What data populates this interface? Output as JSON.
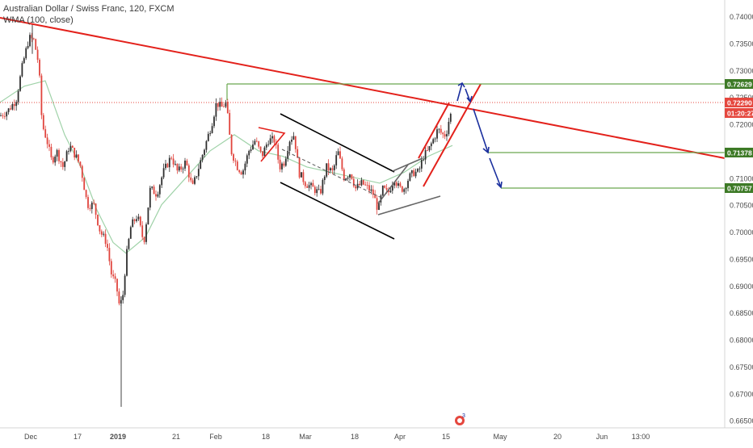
{
  "header": {
    "symbol_title": "Australian Dollar / Swiss Franc, 120, FXCM",
    "indicator_label": "WMA (100, close)"
  },
  "colors": {
    "up_candle": "#2e2e2e",
    "down_candle": "#e0443d",
    "trendline": "#e3211b",
    "channel": "#000000",
    "wma": "#9fd2a8",
    "level": "#6aa84f",
    "arrow": "#1a2f9e",
    "price_badge": "#e5473e",
    "level_badge": "#3d7a26"
  },
  "price_axis": {
    "ticks": [
      "0.74000",
      "0.73500",
      "0.73000",
      "0.72500",
      "0.72000",
      "0.71500",
      "0.71000",
      "0.70500",
      "0.70000",
      "0.69500",
      "0.69000",
      "0.68500",
      "0.68000",
      "0.67500",
      "0.67000",
      "0.66500"
    ],
    "badges": [
      {
        "text": "0.72629",
        "kind": "level"
      },
      {
        "text": "0.72290",
        "kind": "price"
      },
      {
        "text": "01:20:27",
        "kind": "price"
      },
      {
        "text": "0.71378",
        "kind": "level"
      },
      {
        "text": "0.70757",
        "kind": "level"
      }
    ]
  },
  "time_axis": {
    "labels": [
      {
        "text": "Dec",
        "bold": false
      },
      {
        "text": "17",
        "bold": false
      },
      {
        "text": "2019",
        "bold": true
      },
      {
        "text": "21",
        "bold": false
      },
      {
        "text": "Feb",
        "bold": false
      },
      {
        "text": "18",
        "bold": false
      },
      {
        "text": "Mar",
        "bold": false
      },
      {
        "text": "18",
        "bold": false
      },
      {
        "text": "Apr",
        "bold": false
      },
      {
        "text": "15",
        "bold": false
      },
      {
        "text": "May",
        "bold": false
      },
      {
        "text": "20",
        "bold": false
      },
      {
        "text": "Jun",
        "bold": false
      },
      {
        "text": "13:00",
        "bold": false
      }
    ]
  },
  "chart_data": {
    "type": "candlestick",
    "price_range": [
      0.6645,
      0.7415
    ],
    "levels": [
      0.72629,
      0.71378,
      0.70757
    ],
    "current_price": 0.7229,
    "price_path": [
      [
        0,
        0.7215
      ],
      [
        10,
        0.7225
      ],
      [
        20,
        0.7245
      ],
      [
        28,
        0.731
      ],
      [
        36,
        0.736
      ],
      [
        42,
        0.7355
      ],
      [
        48,
        0.731
      ],
      [
        52,
        0.72
      ],
      [
        58,
        0.717
      ],
      [
        64,
        0.713
      ],
      [
        70,
        0.715
      ],
      [
        78,
        0.712
      ],
      [
        86,
        0.716
      ],
      [
        94,
        0.714
      ],
      [
        100,
        0.712
      ],
      [
        108,
        0.705
      ],
      [
        116,
        0.705
      ],
      [
        124,
        0.7
      ],
      [
        132,
        0.698
      ],
      [
        138,
        0.692
      ],
      [
        144,
        0.69
      ],
      [
        148,
        0.686
      ],
      [
        152,
        0.688
      ],
      [
        156,
        0.695
      ],
      [
        162,
        0.701
      ],
      [
        170,
        0.703
      ],
      [
        178,
        0.698
      ],
      [
        186,
        0.708
      ],
      [
        194,
        0.707
      ],
      [
        202,
        0.711
      ],
      [
        212,
        0.714
      ],
      [
        220,
        0.711
      ],
      [
        230,
        0.713
      ],
      [
        238,
        0.708
      ],
      [
        246,
        0.712
      ],
      [
        254,
        0.716
      ],
      [
        262,
        0.72
      ],
      [
        268,
        0.724
      ],
      [
        274,
        0.723
      ],
      [
        280,
        0.724
      ],
      [
        286,
        0.715
      ],
      [
        294,
        0.712
      ],
      [
        300,
        0.711
      ],
      [
        308,
        0.715
      ],
      [
        316,
        0.717
      ],
      [
        324,
        0.714
      ],
      [
        332,
        0.717
      ],
      [
        340,
        0.717
      ],
      [
        346,
        0.712
      ],
      [
        352,
        0.713
      ],
      [
        358,
        0.717
      ],
      [
        364,
        0.718
      ],
      [
        370,
        0.711
      ],
      [
        378,
        0.709
      ],
      [
        388,
        0.708
      ],
      [
        396,
        0.707
      ],
      [
        404,
        0.712
      ],
      [
        412,
        0.711
      ],
      [
        418,
        0.715
      ],
      [
        426,
        0.71
      ],
      [
        434,
        0.711
      ],
      [
        440,
        0.708
      ],
      [
        448,
        0.709
      ],
      [
        456,
        0.708
      ],
      [
        462,
        0.707
      ],
      [
        468,
        0.704
      ],
      [
        474,
        0.708
      ],
      [
        480,
        0.707
      ],
      [
        488,
        0.71
      ],
      [
        494,
        0.708
      ],
      [
        500,
        0.708
      ],
      [
        506,
        0.71
      ],
      [
        512,
        0.711
      ],
      [
        518,
        0.711
      ],
      [
        524,
        0.714
      ],
      [
        530,
        0.715
      ],
      [
        536,
        0.717
      ],
      [
        542,
        0.719
      ],
      [
        548,
        0.718
      ],
      [
        552,
        0.718
      ],
      [
        556,
        0.721
      ],
      [
        560,
        0.7225
      ]
    ],
    "wma_path": [
      [
        0,
        0.724
      ],
      [
        30,
        0.727
      ],
      [
        56,
        0.728
      ],
      [
        80,
        0.718
      ],
      [
        100,
        0.712
      ],
      [
        120,
        0.704
      ],
      [
        140,
        0.698
      ],
      [
        156,
        0.696
      ],
      [
        180,
        0.699
      ],
      [
        200,
        0.705
      ],
      [
        230,
        0.71
      ],
      [
        260,
        0.715
      ],
      [
        290,
        0.718
      ],
      [
        320,
        0.715
      ],
      [
        350,
        0.714
      ],
      [
        380,
        0.712
      ],
      [
        410,
        0.711
      ],
      [
        440,
        0.71
      ],
      [
        470,
        0.709
      ],
      [
        500,
        0.711
      ],
      [
        530,
        0.714
      ],
      [
        560,
        0.716
      ]
    ]
  }
}
